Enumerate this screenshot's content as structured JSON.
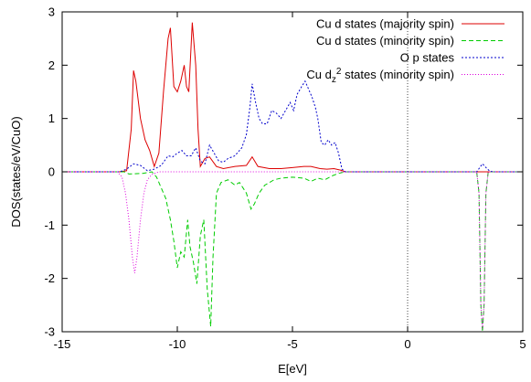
{
  "chart_data": {
    "type": "line",
    "xlabel": "E[eV]",
    "ylabel": "DOS(states/eV/CuO)",
    "xlim": [
      -15,
      5
    ],
    "ylim": [
      -3,
      3
    ],
    "xticks": [
      -15,
      -10,
      -5,
      0,
      5
    ],
    "yticks": [
      -3,
      -2,
      -1,
      0,
      1,
      2,
      3
    ],
    "xtick_labels": [
      "-15",
      "-10",
      "-5",
      "0",
      "5"
    ],
    "ytick_labels": [
      "-3",
      "-2",
      "-1",
      "0",
      "1",
      "2",
      "3"
    ],
    "fermi_level": 0,
    "legend": {
      "position": "top-right",
      "entries": [
        {
          "label": "Cu d states (majority spin)",
          "sub": "",
          "sup": "",
          "rest": ""
        },
        {
          "label": "Cu d states (minority spin)",
          "sub": "",
          "sup": "",
          "rest": ""
        },
        {
          "label": "O p states",
          "sub": "",
          "sup": "",
          "rest": ""
        },
        {
          "label": "Cu d",
          "sub": "z",
          "sup": "2",
          "rest": " states (minority spin)"
        }
      ]
    },
    "series": [
      {
        "color": "#dd0000",
        "dash": "",
        "points": [
          [
            -15,
            0
          ],
          [
            -12.5,
            0
          ],
          [
            -12.2,
            0.02
          ],
          [
            -12.0,
            0.8
          ],
          [
            -11.9,
            1.9
          ],
          [
            -11.8,
            1.7
          ],
          [
            -11.6,
            1.0
          ],
          [
            -11.4,
            0.6
          ],
          [
            -11.2,
            0.4
          ],
          [
            -11.0,
            0.1
          ],
          [
            -10.8,
            0.35
          ],
          [
            -10.6,
            1.5
          ],
          [
            -10.4,
            2.5
          ],
          [
            -10.3,
            2.7
          ],
          [
            -10.15,
            1.6
          ],
          [
            -10.0,
            1.5
          ],
          [
            -9.85,
            1.7
          ],
          [
            -9.7,
            2.0
          ],
          [
            -9.6,
            1.6
          ],
          [
            -9.5,
            1.5
          ],
          [
            -9.35,
            2.8
          ],
          [
            -9.2,
            2.0
          ],
          [
            -9.1,
            0.8
          ],
          [
            -9.0,
            0.1
          ],
          [
            -8.8,
            0.25
          ],
          [
            -8.6,
            0.28
          ],
          [
            -8.3,
            0.1
          ],
          [
            -8.0,
            0.06
          ],
          [
            -7.5,
            0.1
          ],
          [
            -7.0,
            0.12
          ],
          [
            -6.75,
            0.28
          ],
          [
            -6.5,
            0.1
          ],
          [
            -6.0,
            0.06
          ],
          [
            -5.5,
            0.06
          ],
          [
            -5.0,
            0.08
          ],
          [
            -4.5,
            0.1
          ],
          [
            -4.2,
            0.1
          ],
          [
            -3.8,
            0.06
          ],
          [
            -3.5,
            0.05
          ],
          [
            -3.2,
            0.06
          ],
          [
            -2.9,
            0.03
          ],
          [
            -2.7,
            0
          ],
          [
            5,
            0
          ]
        ]
      },
      {
        "color": "#00cc00",
        "dash": "5,3",
        "points": [
          [
            -15,
            0
          ],
          [
            -12.3,
            0
          ],
          [
            -12.1,
            -0.04
          ],
          [
            -11.5,
            -0.03
          ],
          [
            -11.1,
            0.0
          ],
          [
            -10.9,
            -0.1
          ],
          [
            -10.7,
            -0.3
          ],
          [
            -10.5,
            -0.5
          ],
          [
            -10.3,
            -0.9
          ],
          [
            -10.15,
            -1.3
          ],
          [
            -10.0,
            -1.8
          ],
          [
            -9.85,
            -1.5
          ],
          [
            -9.7,
            -1.6
          ],
          [
            -9.55,
            -0.9
          ],
          [
            -9.45,
            -1.4
          ],
          [
            -9.3,
            -1.7
          ],
          [
            -9.15,
            -2.1
          ],
          [
            -9.0,
            -1.2
          ],
          [
            -8.85,
            -0.9
          ],
          [
            -8.7,
            -2.2
          ],
          [
            -8.55,
            -2.9
          ],
          [
            -8.45,
            -1.6
          ],
          [
            -8.3,
            -0.4
          ],
          [
            -8.1,
            -0.2
          ],
          [
            -7.8,
            -0.15
          ],
          [
            -7.5,
            -0.25
          ],
          [
            -7.3,
            -0.2
          ],
          [
            -7.0,
            -0.4
          ],
          [
            -6.8,
            -0.7
          ],
          [
            -6.65,
            -0.6
          ],
          [
            -6.45,
            -0.4
          ],
          [
            -6.2,
            -0.25
          ],
          [
            -5.8,
            -0.15
          ],
          [
            -5.5,
            -0.12
          ],
          [
            -5.0,
            -0.1
          ],
          [
            -4.5,
            -0.12
          ],
          [
            -4.2,
            -0.18
          ],
          [
            -3.9,
            -0.12
          ],
          [
            -3.6,
            -0.15
          ],
          [
            -3.3,
            -0.08
          ],
          [
            -3.0,
            -0.03
          ],
          [
            -2.7,
            0
          ],
          [
            3.0,
            0
          ],
          [
            3.1,
            -0.4
          ],
          [
            3.18,
            -2.5
          ],
          [
            3.25,
            -3.0
          ],
          [
            3.32,
            -2.5
          ],
          [
            3.4,
            -0.4
          ],
          [
            3.5,
            0
          ],
          [
            5,
            0
          ]
        ]
      },
      {
        "color": "#0000cc",
        "dash": "2,2",
        "points": [
          [
            -15,
            0
          ],
          [
            -12.5,
            0
          ],
          [
            -12.2,
            0.05
          ],
          [
            -11.9,
            0.15
          ],
          [
            -11.6,
            0.12
          ],
          [
            -11.3,
            0.02
          ],
          [
            -11.0,
            0.05
          ],
          [
            -10.7,
            0.12
          ],
          [
            -10.4,
            0.3
          ],
          [
            -10.2,
            0.28
          ],
          [
            -10.0,
            0.35
          ],
          [
            -9.8,
            0.4
          ],
          [
            -9.6,
            0.3
          ],
          [
            -9.4,
            0.3
          ],
          [
            -9.2,
            0.45
          ],
          [
            -9.0,
            0.2
          ],
          [
            -8.8,
            0.15
          ],
          [
            -8.6,
            0.5
          ],
          [
            -8.4,
            0.35
          ],
          [
            -8.2,
            0.2
          ],
          [
            -8.0,
            0.18
          ],
          [
            -7.8,
            0.25
          ],
          [
            -7.5,
            0.3
          ],
          [
            -7.2,
            0.45
          ],
          [
            -7.0,
            0.7
          ],
          [
            -6.85,
            1.2
          ],
          [
            -6.75,
            1.65
          ],
          [
            -6.6,
            1.3
          ],
          [
            -6.45,
            1.0
          ],
          [
            -6.3,
            0.9
          ],
          [
            -6.1,
            0.9
          ],
          [
            -5.9,
            1.15
          ],
          [
            -5.7,
            1.1
          ],
          [
            -5.5,
            1.0
          ],
          [
            -5.3,
            1.15
          ],
          [
            -5.1,
            1.3
          ],
          [
            -4.95,
            1.15
          ],
          [
            -4.8,
            1.45
          ],
          [
            -4.6,
            1.6
          ],
          [
            -4.45,
            1.7
          ],
          [
            -4.3,
            1.55
          ],
          [
            -4.15,
            1.4
          ],
          [
            -4.0,
            1.2
          ],
          [
            -3.9,
            1.0
          ],
          [
            -3.75,
            0.55
          ],
          [
            -3.6,
            0.5
          ],
          [
            -3.45,
            0.6
          ],
          [
            -3.3,
            0.5
          ],
          [
            -3.15,
            0.55
          ],
          [
            -3.0,
            0.35
          ],
          [
            -2.85,
            0.05
          ],
          [
            -2.7,
            0
          ],
          [
            3.0,
            0
          ],
          [
            3.1,
            0.06
          ],
          [
            3.25,
            0.15
          ],
          [
            3.4,
            0.08
          ],
          [
            3.55,
            0.02
          ],
          [
            3.7,
            0
          ],
          [
            5,
            0
          ]
        ]
      },
      {
        "color": "#dd00dd",
        "dash": "1,2",
        "points": [
          [
            -15,
            0
          ],
          [
            -12.6,
            0
          ],
          [
            -12.4,
            -0.1
          ],
          [
            -12.25,
            -0.4
          ],
          [
            -12.1,
            -0.9
          ],
          [
            -11.95,
            -1.6
          ],
          [
            -11.85,
            -1.9
          ],
          [
            -11.75,
            -1.6
          ],
          [
            -11.6,
            -0.9
          ],
          [
            -11.45,
            -0.4
          ],
          [
            -11.3,
            -0.15
          ],
          [
            -11.1,
            -0.05
          ],
          [
            -10.8,
            0
          ],
          [
            3.0,
            0
          ],
          [
            3.1,
            -0.4
          ],
          [
            3.18,
            -2.5
          ],
          [
            3.25,
            -2.95
          ],
          [
            3.32,
            -2.5
          ],
          [
            3.4,
            -0.4
          ],
          [
            3.5,
            0
          ],
          [
            5,
            0
          ]
        ]
      }
    ]
  }
}
